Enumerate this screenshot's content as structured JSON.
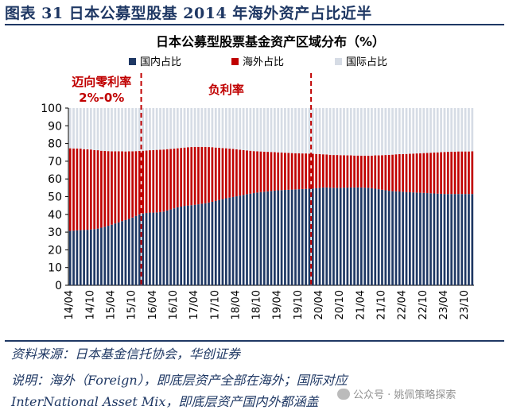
{
  "figure_label": "图表 31 日本公募型股基 2014 年海外资产占比近半",
  "source_text": "资料来源：日本基金信托协会，华创证券",
  "note_line1": "说明：海外（Foreign），即底层资产全部在海外；国际对应",
  "note_line2": "InterNational Asset Mix，即底层资产国内外都涵盖",
  "watermark": "公众号 · 姚佩策略探索",
  "colors": {
    "domestic": "#1f3864",
    "overseas": "#c00000",
    "international": "#d6dce5",
    "title": "#1f3864",
    "divider": "#c00000"
  },
  "chart_data": {
    "type": "bar",
    "stacked": true,
    "title": "日本公募型股票基金资产区域分布（%）",
    "ylim": [
      0,
      100
    ],
    "yticks": [
      0,
      10,
      20,
      30,
      40,
      50,
      60,
      70,
      80,
      90,
      100
    ],
    "legend": [
      "国内占比",
      "海外占比",
      "国际占比"
    ],
    "legend_position": "top",
    "x_tick_labels": [
      "14/04",
      "14/10",
      "15/04",
      "15/10",
      "16/04",
      "16/10",
      "17/04",
      "17/10",
      "18/04",
      "18/10",
      "19/04",
      "19/10",
      "20/04",
      "20/10",
      "21/04",
      "21/10",
      "22/04",
      "22/10",
      "23/04",
      "23/10"
    ],
    "categories": [
      "14/04",
      "14/05",
      "14/06",
      "14/07",
      "14/08",
      "14/09",
      "14/10",
      "14/11",
      "14/12",
      "15/01",
      "15/02",
      "15/03",
      "15/04",
      "15/05",
      "15/06",
      "15/07",
      "15/08",
      "15/09",
      "15/10",
      "15/11",
      "15/12",
      "16/01",
      "16/02",
      "16/03",
      "16/04",
      "16/05",
      "16/06",
      "16/07",
      "16/08",
      "16/09",
      "16/10",
      "16/11",
      "16/12",
      "17/01",
      "17/02",
      "17/03",
      "17/04",
      "17/05",
      "17/06",
      "17/07",
      "17/08",
      "17/09",
      "17/10",
      "17/11",
      "17/12",
      "18/01",
      "18/02",
      "18/03",
      "18/04",
      "18/05",
      "18/06",
      "18/07",
      "18/08",
      "18/09",
      "18/10",
      "18/11",
      "18/12",
      "19/01",
      "19/02",
      "19/03",
      "19/04",
      "19/05",
      "19/06",
      "19/07",
      "19/08",
      "19/09",
      "19/10",
      "19/11",
      "19/12",
      "20/01",
      "20/02",
      "20/03",
      "20/04",
      "20/05",
      "20/06",
      "20/07",
      "20/08",
      "20/09",
      "20/10",
      "20/11",
      "20/12",
      "21/01",
      "21/02",
      "21/03",
      "21/04",
      "21/05",
      "21/06",
      "21/07",
      "21/08",
      "21/09",
      "21/10",
      "21/11",
      "21/12",
      "22/01",
      "22/02",
      "22/03",
      "22/04",
      "22/05",
      "22/06",
      "22/07",
      "22/08",
      "22/09",
      "22/10",
      "22/11",
      "22/12",
      "23/01",
      "23/02",
      "23/03",
      "23/04",
      "23/05",
      "23/06",
      "23/07",
      "23/08",
      "23/09",
      "23/10",
      "23/11",
      "23/12"
    ],
    "series": [
      {
        "name": "国内占比",
        "values": [
          30.7,
          30.8,
          31.0,
          31.1,
          31.2,
          31.3,
          31.5,
          31.7,
          32.0,
          32.5,
          33.0,
          33.6,
          34.2,
          34.9,
          35.5,
          36.2,
          36.8,
          37.5,
          38.2,
          39.1,
          40.0,
          40.5,
          40.8,
          41.0,
          41.0,
          41.1,
          41.3,
          41.6,
          42.2,
          42.8,
          43.4,
          44.0,
          44.4,
          44.8,
          45.0,
          45.2,
          45.4,
          45.7,
          46.0,
          46.3,
          46.7,
          47.1,
          47.6,
          48.1,
          48.6,
          49.1,
          49.5,
          49.8,
          50.2,
          50.6,
          51.0,
          51.4,
          51.7,
          52.0,
          52.3,
          52.6,
          52.8,
          53.0,
          53.2,
          53.4,
          53.6,
          53.7,
          53.8,
          53.9,
          54.0,
          54.1,
          54.2,
          54.3,
          54.4,
          54.5,
          54.6,
          54.8,
          55.0,
          55.2,
          55.2,
          55.1,
          55.0,
          55.0,
          55.0,
          55.1,
          55.1,
          55.2,
          55.2,
          55.2,
          55.2,
          55.1,
          55.0,
          54.8,
          54.5,
          54.2,
          53.9,
          53.6,
          53.3,
          53.1,
          53.0,
          52.9,
          52.8,
          52.6,
          52.5,
          52.4,
          52.3,
          52.2,
          52.1,
          52.0,
          51.9,
          51.8,
          51.7,
          51.6,
          51.5,
          51.5,
          51.5,
          51.5,
          51.5,
          51.5,
          51.5,
          51.5,
          51.5
        ]
      },
      {
        "name": "海外占比",
        "values": [
          46.6,
          46.4,
          46.2,
          46.0,
          45.6,
          45.4,
          45.1,
          44.6,
          44.2,
          43.4,
          42.8,
          42.1,
          41.4,
          40.7,
          40.1,
          39.4,
          38.7,
          38.1,
          37.4,
          36.6,
          35.8,
          35.4,
          35.2,
          35.2,
          35.3,
          35.3,
          35.2,
          35.0,
          34.6,
          34.1,
          33.7,
          33.3,
          33.1,
          32.9,
          32.9,
          32.8,
          32.7,
          32.4,
          32.1,
          31.8,
          31.3,
          30.8,
          30.1,
          29.5,
          28.8,
          28.2,
          27.6,
          27.1,
          26.5,
          25.9,
          25.3,
          24.7,
          24.2,
          23.7,
          23.3,
          22.9,
          22.6,
          22.3,
          22.0,
          21.7,
          21.4,
          21.2,
          21.0,
          20.8,
          20.6,
          20.4,
          20.3,
          20.1,
          20.0,
          19.8,
          19.6,
          19.3,
          19.0,
          18.7,
          18.6,
          18.5,
          18.5,
          18.5,
          18.4,
          18.3,
          18.2,
          18.1,
          18.0,
          18.0,
          17.9,
          18.0,
          18.1,
          18.3,
          18.8,
          19.1,
          19.5,
          19.9,
          20.3,
          20.6,
          20.9,
          21.1,
          21.2,
          21.5,
          21.7,
          21.9,
          22.1,
          22.3,
          22.5,
          22.7,
          22.9,
          23.1,
          23.3,
          23.5,
          23.7,
          23.8,
          23.9,
          23.9,
          24.0,
          24.0,
          24.0,
          24.0,
          24.1
        ]
      },
      {
        "name": "国际占比",
        "values": [
          22.7,
          22.8,
          22.8,
          22.9,
          23.2,
          23.3,
          23.4,
          23.7,
          23.8,
          24.1,
          24.2,
          24.3,
          24.4,
          24.4,
          24.4,
          24.4,
          24.5,
          24.4,
          24.4,
          24.3,
          24.2,
          24.1,
          24.0,
          23.8,
          23.7,
          23.6,
          23.5,
          23.4,
          23.2,
          23.1,
          22.9,
          22.7,
          22.5,
          22.3,
          22.1,
          22.0,
          21.9,
          21.9,
          21.9,
          21.9,
          22.0,
          22.1,
          22.3,
          22.4,
          22.6,
          22.7,
          22.9,
          23.1,
          23.3,
          23.5,
          23.7,
          23.9,
          24.1,
          24.3,
          24.4,
          24.5,
          24.6,
          24.7,
          24.8,
          24.9,
          25.0,
          25.1,
          25.2,
          25.3,
          25.4,
          25.5,
          25.5,
          25.6,
          25.6,
          25.7,
          25.8,
          25.9,
          26.0,
          26.1,
          26.2,
          26.4,
          26.5,
          26.5,
          26.6,
          26.6,
          26.7,
          26.7,
          26.8,
          26.8,
          26.9,
          26.9,
          26.9,
          26.9,
          26.7,
          26.7,
          26.6,
          26.5,
          26.4,
          26.3,
          26.1,
          26.0,
          26.0,
          25.9,
          25.8,
          25.7,
          25.6,
          25.5,
          25.4,
          25.3,
          25.2,
          25.1,
          25.0,
          24.9,
          24.8,
          24.7,
          24.6,
          24.6,
          24.5,
          24.5,
          24.5,
          24.5,
          24.4
        ]
      }
    ],
    "dividers": [
      {
        "after_category": "15/12",
        "style": "dashed"
      },
      {
        "after_category": "20/01",
        "style": "dashed"
      }
    ],
    "annotations": [
      {
        "text": "迈向零利率",
        "subtext": "2%-0%",
        "region": "14/04-15/12"
      },
      {
        "text": "负利率",
        "region": "16/01-20/01"
      }
    ]
  }
}
